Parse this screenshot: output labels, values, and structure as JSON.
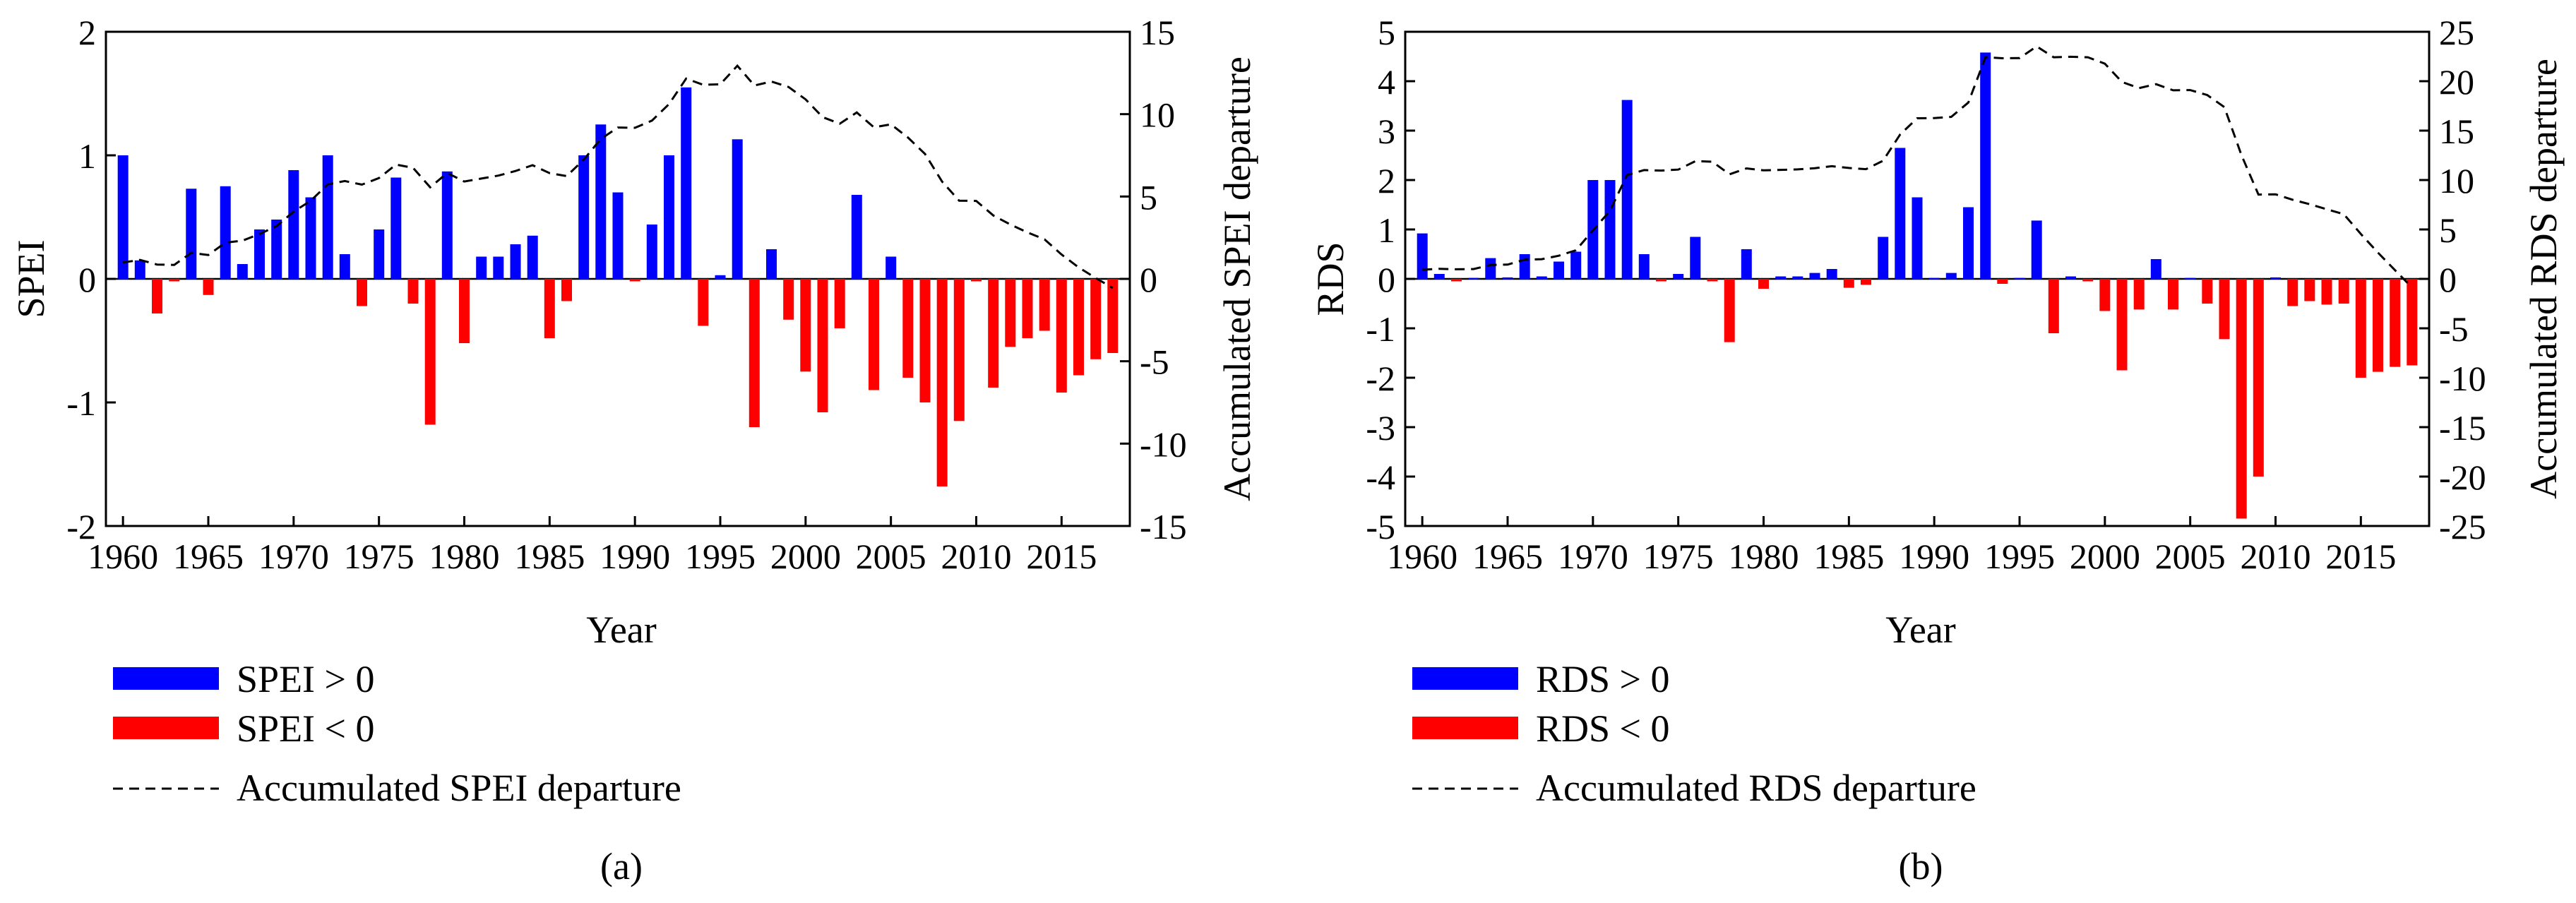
{
  "colors": {
    "positive": "#0000FF",
    "negative": "#FF0000",
    "line": "#000000",
    "axis": "#000000"
  },
  "chart_data": [
    {
      "type": "bar",
      "panel_label": "(a)",
      "title": "",
      "xlabel": "Year",
      "ylabel": "SPEI",
      "y2label": "Accumulated SPEI departure",
      "xlim": [
        1959,
        2019
      ],
      "ylim": [
        -2,
        2
      ],
      "y2lim": [
        -15,
        15
      ],
      "xticks": [
        1960,
        1965,
        1970,
        1975,
        1980,
        1985,
        1990,
        1995,
        2000,
        2005,
        2010,
        2015
      ],
      "yticks": [
        -2,
        -1,
        0,
        1,
        2
      ],
      "y2ticks": [
        -15,
        -10,
        -5,
        0,
        5,
        10,
        15
      ],
      "years": [
        1960,
        1961,
        1962,
        1963,
        1964,
        1965,
        1966,
        1967,
        1968,
        1969,
        1970,
        1971,
        1972,
        1973,
        1974,
        1975,
        1976,
        1977,
        1978,
        1979,
        1980,
        1981,
        1982,
        1983,
        1984,
        1985,
        1986,
        1987,
        1988,
        1989,
        1990,
        1991,
        1992,
        1993,
        1994,
        1995,
        1996,
        1997,
        1998,
        1999,
        2000,
        2001,
        2002,
        2003,
        2004,
        2005,
        2006,
        2007,
        2008,
        2009,
        2010,
        2011,
        2012,
        2013,
        2014,
        2015,
        2016,
        2017,
        2018
      ],
      "series": [
        {
          "name": "SPEI > 0",
          "color": "#0000FF",
          "style": "bar"
        },
        {
          "name": "SPEI < 0",
          "color": "#FF0000",
          "style": "bar"
        },
        {
          "name": "Accumulated SPEI departure",
          "color": "#000000",
          "style": "dashed-line",
          "axis": "right"
        }
      ],
      "values": [
        1.0,
        0.15,
        -0.28,
        -0.02,
        0.73,
        -0.13,
        0.75,
        0.12,
        0.4,
        0.48,
        0.88,
        0.66,
        1.0,
        0.2,
        -0.22,
        0.4,
        0.82,
        -0.2,
        -1.18,
        0.87,
        -0.52,
        0.18,
        0.18,
        0.28,
        0.35,
        -0.48,
        -0.18,
        1.0,
        1.25,
        0.7,
        -0.02,
        0.44,
        1.0,
        1.55,
        -0.38,
        0.03,
        1.13,
        -1.2,
        0.24,
        -0.33,
        -0.75,
        -1.08,
        -0.4,
        0.68,
        -0.9,
        0.18,
        -0.8,
        -1.0,
        -1.68,
        -1.15,
        -0.02,
        -0.88,
        -0.55,
        -0.48,
        -0.42,
        -0.92,
        -0.78,
        -0.65,
        -0.6
      ],
      "accumulated": [
        1.0,
        1.15,
        0.87,
        0.85,
        1.58,
        1.45,
        2.2,
        2.32,
        2.72,
        3.2,
        4.08,
        4.74,
        5.74,
        5.94,
        5.72,
        6.12,
        6.94,
        6.74,
        5.56,
        6.43,
        5.91,
        6.09,
        6.27,
        6.55,
        6.9,
        6.42,
        6.24,
        7.24,
        8.49,
        9.19,
        9.17,
        9.61,
        10.61,
        12.16,
        11.78,
        11.81,
        12.94,
        11.74,
        11.98,
        11.65,
        10.9,
        9.82,
        9.42,
        10.1,
        9.2,
        9.38,
        8.58,
        7.58,
        5.9,
        4.75,
        4.73,
        3.85,
        3.3,
        2.82,
        2.4,
        1.48,
        0.7,
        0.05,
        -0.55
      ]
    },
    {
      "type": "bar",
      "panel_label": "(b)",
      "title": "",
      "xlabel": "Year",
      "ylabel": "RDS",
      "y2label": "Accumulated RDS departure",
      "xlim": [
        1959,
        2019
      ],
      "ylim": [
        -5,
        5
      ],
      "y2lim": [
        -25,
        25
      ],
      "xticks": [
        1960,
        1965,
        1970,
        1975,
        1980,
        1985,
        1990,
        1995,
        2000,
        2005,
        2010,
        2015
      ],
      "yticks": [
        -5,
        -4,
        -3,
        -2,
        -1,
        0,
        1,
        2,
        3,
        4,
        5
      ],
      "y2ticks": [
        -25,
        -20,
        -15,
        -10,
        -5,
        0,
        5,
        10,
        15,
        20,
        25
      ],
      "years": [
        1960,
        1961,
        1962,
        1963,
        1964,
        1965,
        1966,
        1967,
        1968,
        1969,
        1970,
        1971,
        1972,
        1973,
        1974,
        1975,
        1976,
        1977,
        1978,
        1979,
        1980,
        1981,
        1982,
        1983,
        1984,
        1985,
        1986,
        1987,
        1988,
        1989,
        1990,
        1991,
        1992,
        1993,
        1994,
        1995,
        1996,
        1997,
        1998,
        1999,
        2000,
        2001,
        2002,
        2003,
        2004,
        2005,
        2006,
        2007,
        2008,
        2009,
        2010,
        2011,
        2012,
        2013,
        2014,
        2015,
        2016,
        2017,
        2018
      ],
      "series": [
        {
          "name": "RDS > 0",
          "color": "#0000FF",
          "style": "bar"
        },
        {
          "name": "RDS < 0",
          "color": "#FF0000",
          "style": "bar"
        },
        {
          "name": "Accumulated RDS departure",
          "color": "#000000",
          "style": "dashed-line",
          "axis": "right"
        }
      ],
      "values": [
        0.92,
        0.1,
        -0.05,
        0.02,
        0.42,
        0.03,
        0.5,
        0.05,
        0.35,
        0.55,
        2.0,
        2.0,
        3.62,
        0.5,
        -0.05,
        0.1,
        0.85,
        -0.05,
        -1.28,
        0.6,
        -0.2,
        0.05,
        0.05,
        0.12,
        0.2,
        -0.18,
        -0.12,
        0.85,
        2.65,
        1.65,
        0.02,
        0.12,
        1.45,
        4.58,
        -0.1,
        0.02,
        1.18,
        -1.1,
        0.05,
        -0.05,
        -0.65,
        -1.85,
        -0.62,
        0.4,
        -0.62,
        0.02,
        -0.5,
        -1.22,
        -4.85,
        -4.0,
        0.03,
        -0.55,
        -0.45,
        -0.52,
        -0.5,
        -2.0,
        -1.88,
        -1.78,
        -1.75
      ],
      "accumulated": [
        0.92,
        1.02,
        0.97,
        0.99,
        1.41,
        1.44,
        1.94,
        1.99,
        2.34,
        2.89,
        4.89,
        6.89,
        10.51,
        11.01,
        10.96,
        11.06,
        11.91,
        11.86,
        10.58,
        11.18,
        10.98,
        11.03,
        11.08,
        11.2,
        11.4,
        11.22,
        11.1,
        11.95,
        14.6,
        16.25,
        16.27,
        16.39,
        17.84,
        22.42,
        22.32,
        22.34,
        23.52,
        22.42,
        22.47,
        22.42,
        21.77,
        19.92,
        19.3,
        19.7,
        19.08,
        19.1,
        18.6,
        17.38,
        12.53,
        8.53,
        8.56,
        8.01,
        7.56,
        7.04,
        6.54,
        4.54,
        2.66,
        0.88,
        -0.87
      ]
    }
  ]
}
